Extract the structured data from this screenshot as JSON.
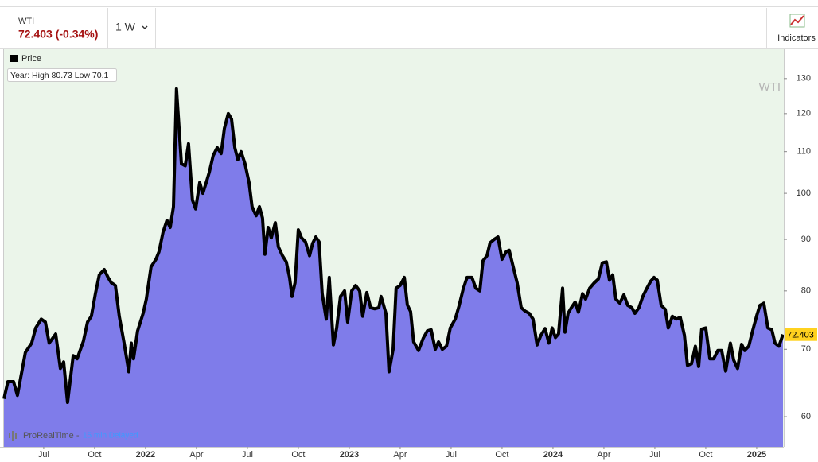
{
  "toolbar": {
    "symbol": "WTI",
    "quote": "72.403 (-0.34%)",
    "interval": "1 W",
    "indicators": "Indicators"
  },
  "chart_data": {
    "type": "area",
    "title": "WTI",
    "annotation": "Year: High 80.73 Low 70.1",
    "credit": "ProRealTime -",
    "delay": "15 min Delayed",
    "log_scale": true,
    "x": [
      2021.305,
      2021.324,
      2021.352,
      2021.371,
      2021.41,
      2021.441,
      2021.461,
      2021.488,
      2021.508,
      2021.527,
      2021.559,
      2021.582,
      2021.598,
      2021.617,
      2021.645,
      2021.664,
      2021.695,
      2021.715,
      2021.734,
      2021.754,
      2021.773,
      2021.797,
      2021.816,
      2021.832,
      2021.852,
      2021.871,
      2021.895,
      2021.918,
      2021.93,
      2021.941,
      2021.961,
      2021.988,
      2022.004,
      2022.027,
      2022.051,
      2022.066,
      2022.086,
      2022.105,
      2022.121,
      2022.137,
      2022.152,
      2022.176,
      2022.195,
      2022.211,
      2022.23,
      2022.246,
      2022.266,
      2022.281,
      2022.301,
      2022.313,
      2022.332,
      2022.352,
      2022.371,
      2022.387,
      2022.406,
      2022.422,
      2022.438,
      2022.453,
      2022.469,
      2022.488,
      2022.508,
      2022.523,
      2022.543,
      2022.559,
      2022.574,
      2022.586,
      2022.602,
      2022.617,
      2022.637,
      2022.652,
      2022.672,
      2022.691,
      2022.707,
      2022.719,
      2022.734,
      2022.75,
      2022.766,
      2022.785,
      2022.805,
      2022.82,
      2022.836,
      2022.852,
      2022.867,
      2022.887,
      2022.902,
      2022.922,
      2022.938,
      2022.957,
      2022.977,
      2022.992,
      2023.012,
      2023.031,
      2023.051,
      2023.066,
      2023.086,
      2023.105,
      2023.125,
      2023.145,
      2023.156,
      2023.18,
      2023.195,
      2023.215,
      2023.23,
      2023.25,
      2023.27,
      2023.285,
      2023.301,
      2023.316,
      2023.34,
      2023.363,
      2023.383,
      2023.402,
      2023.422,
      2023.438,
      2023.457,
      2023.477,
      2023.496,
      2023.52,
      2023.539,
      2023.559,
      2023.578,
      2023.602,
      2023.621,
      2023.641,
      2023.656,
      2023.676,
      2023.691,
      2023.711,
      2023.73,
      2023.75,
      2023.77,
      2023.785,
      2023.805,
      2023.824,
      2023.844,
      2023.863,
      2023.883,
      2023.902,
      2023.922,
      2023.941,
      2023.961,
      2023.98,
      2023.996,
      2024.012,
      2024.027,
      2024.047,
      2024.059,
      2024.074,
      2024.09,
      2024.109,
      2024.125,
      2024.145,
      2024.16,
      2024.18,
      2024.203,
      2024.223,
      2024.242,
      2024.262,
      2024.277,
      2024.293,
      2024.309,
      2024.328,
      2024.348,
      2024.367,
      2024.387,
      2024.402,
      2024.422,
      2024.441,
      2024.461,
      2024.48,
      2024.496,
      2024.512,
      2024.531,
      2024.551,
      2024.566,
      2024.586,
      2024.605,
      2024.625,
      2024.645,
      2024.66,
      2024.68,
      2024.699,
      2024.715,
      2024.73,
      2024.75,
      2024.77,
      2024.789,
      2024.809,
      2024.828,
      2024.848,
      2024.871,
      2024.887,
      2024.906,
      2024.926,
      2024.941,
      2024.961,
      2024.98,
      2025.0,
      2025.016,
      2025.035,
      2025.055,
      2025.074,
      2025.09,
      2025.109,
      2025.129
    ],
    "series": [
      {
        "name": "Price",
        "color": "#000000",
        "fill": "#7f7cea",
        "values": [
          62.5,
          65,
          65,
          63,
          69.5,
          71,
          73.5,
          75,
          74.5,
          71,
          72.5,
          67,
          68,
          62,
          69,
          68.5,
          71.3,
          74.5,
          75.5,
          79.5,
          83,
          84,
          82.5,
          81.5,
          81,
          75.5,
          71,
          66.5,
          71,
          68.5,
          73,
          76,
          78.5,
          84.5,
          86,
          87.5,
          91.5,
          94,
          92.5,
          97,
          127,
          107,
          106.5,
          112,
          98.5,
          96.5,
          102.5,
          100,
          103,
          105,
          109,
          111,
          109.5,
          116,
          120,
          118.5,
          111,
          108,
          110,
          107,
          102.5,
          97,
          95,
          97,
          94.5,
          87,
          92.5,
          90.3,
          93.5,
          88.5,
          86.7,
          85.5,
          82.5,
          79,
          81.5,
          92,
          90.3,
          89.5,
          86.7,
          89.2,
          90.5,
          89.5,
          79.5,
          75,
          82.5,
          70.7,
          73.5,
          79,
          80,
          74.5,
          80,
          81,
          80,
          75.5,
          79.7,
          77,
          76.8,
          77,
          79,
          76,
          66.5,
          70,
          80.5,
          81,
          82.5,
          77.5,
          76.3,
          71.2,
          69.8,
          71.8,
          73,
          73.2,
          70,
          71.2,
          70,
          70.5,
          73.5,
          75,
          77.3,
          80.3,
          82.5,
          82.5,
          80.5,
          80,
          85.7,
          86.7,
          89.3,
          90,
          90.5,
          86,
          87.5,
          87.8,
          84.5,
          81.5,
          77,
          76.4,
          76,
          75,
          70.7,
          72.3,
          73.4,
          71,
          73.5,
          71.9,
          72.5,
          80.5,
          72.8,
          76,
          77,
          78,
          76.2,
          79.5,
          78.5,
          80.5,
          81.5,
          82.2,
          85.3,
          85.5,
          82,
          83,
          78.5,
          77.8,
          79.3,
          77.4,
          77,
          76,
          77,
          79,
          80.5,
          81.8,
          82.5,
          82,
          77.4,
          76.7,
          73.5,
          75.5,
          75,
          75.3,
          72.3,
          67.5,
          67.7,
          70.5,
          67.3,
          73.3,
          73.5,
          68.5,
          68.5,
          69.8,
          69.8,
          66.6,
          71,
          68.3,
          67,
          70.8,
          69.8,
          70.5,
          73,
          75.6,
          77.4,
          77.8,
          73.5,
          73.2,
          71,
          70.5,
          72.403
        ]
      }
    ],
    "xlim": [
      2021.305,
      2025.133
    ],
    "xticks": [
      {
        "value": 2021.5,
        "label": "Jul"
      },
      {
        "value": 2021.75,
        "label": "Oct"
      },
      {
        "value": 2022,
        "label": "2022"
      },
      {
        "value": 2022.25,
        "label": "Apr"
      },
      {
        "value": 2022.5,
        "label": "Jul"
      },
      {
        "value": 2022.75,
        "label": "Oct"
      },
      {
        "value": 2023,
        "label": "2023"
      },
      {
        "value": 2023.25,
        "label": "Apr"
      },
      {
        "value": 2023.5,
        "label": "Jul"
      },
      {
        "value": 2023.75,
        "label": "Oct"
      },
      {
        "value": 2024,
        "label": "2024"
      },
      {
        "value": 2024.25,
        "label": "Apr"
      },
      {
        "value": 2024.5,
        "label": "Jul"
      },
      {
        "value": 2024.75,
        "label": "Oct"
      },
      {
        "value": 2025,
        "label": "2025"
      }
    ],
    "ylim": [
      56,
      139
    ],
    "yticks": [
      60,
      70,
      80,
      90,
      100,
      110,
      120,
      130
    ],
    "background": "#ebf5ea",
    "badge_color": "#ffd21f"
  }
}
